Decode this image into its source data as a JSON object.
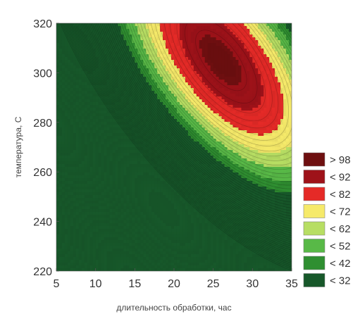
{
  "chart_data": {
    "type": "heatmap",
    "subtype": "filled-contour",
    "title": "",
    "xlabel": "длительность обработки, час",
    "ylabel": "температура, С",
    "xlim": [
      5,
      35
    ],
    "ylim": [
      220,
      320
    ],
    "x_ticks": [
      "5",
      "10",
      "15",
      "20",
      "25",
      "30",
      "35"
    ],
    "y_ticks": [
      "220",
      "240",
      "260",
      "280",
      "300",
      "320"
    ],
    "grid": false,
    "legend_position": "right",
    "optimum": {
      "x": 26,
      "y": 305,
      "value": 100
    },
    "thresholds": [
      32,
      42,
      52,
      62,
      72,
      82,
      92,
      98
    ],
    "legend": [
      {
        "label": "> 98",
        "color": "#6e0f10"
      },
      {
        "label": "< 92",
        "color": "#9e1219"
      },
      {
        "label": "< 82",
        "color": "#e52a27"
      },
      {
        "label": "< 72",
        "color": "#f6ea6a"
      },
      {
        "label": "< 62",
        "color": "#b7de63"
      },
      {
        "label": "< 52",
        "color": "#58b947"
      },
      {
        "label": "< 42",
        "color": "#2f8f31"
      },
      {
        "label": "< 32",
        "color": "#17582a"
      }
    ],
    "band_colors": [
      "#17582a",
      "#2f8f31",
      "#58b947",
      "#b7de63",
      "#f6ea6a",
      "#e52a27",
      "#9e1219",
      "#6e0f10"
    ]
  }
}
